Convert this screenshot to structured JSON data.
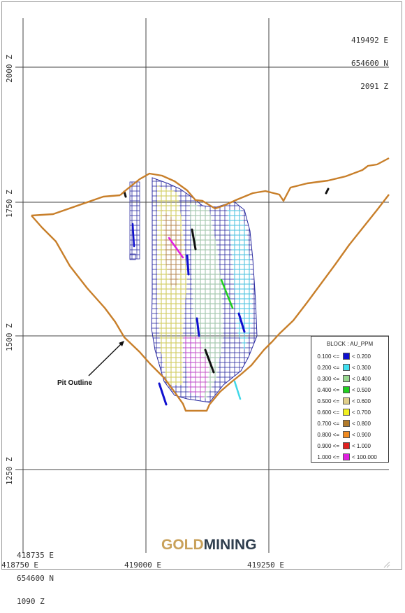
{
  "section": {
    "top_right_coords": [
      "419492 E",
      "654600 N",
      "2091 Z"
    ],
    "bottom_left_coords": [
      "418735 E",
      "654600 N",
      "1090 Z"
    ],
    "elevation_labels": [
      "2000 Z",
      "1750 Z",
      "1500 Z",
      "1250 Z"
    ],
    "easting_labels": [
      "418750 E",
      "419000 E",
      "419250 E"
    ]
  },
  "annotation": {
    "pit_label": "Pit Outline"
  },
  "legend": {
    "title": "BLOCK : AU_PPM",
    "items": [
      {
        "lower": "0.100 <=",
        "upper": "< 0.200",
        "color": "#1010d0"
      },
      {
        "lower": "0.200 <=",
        "upper": "< 0.300",
        "color": "#40e0f0"
      },
      {
        "lower": "0.300 <=",
        "upper": "< 0.400",
        "color": "#98d890"
      },
      {
        "lower": "0.400 <=",
        "upper": "< 0.500",
        "color": "#20d020"
      },
      {
        "lower": "0.500 <=",
        "upper": "< 0.600",
        "color": "#e0cf8a"
      },
      {
        "lower": "0.600 <=",
        "upper": "< 0.700",
        "color": "#f0f020"
      },
      {
        "lower": "0.700 <=",
        "upper": "< 0.800",
        "color": "#b27a2a"
      },
      {
        "lower": "0.800 <=",
        "upper": "< 0.900",
        "color": "#f08a20"
      },
      {
        "lower": "0.900 <=",
        "upper": "< 1.000",
        "color": "#e02020"
      },
      {
        "lower": "1.000 <=",
        "upper": "< 100.000",
        "color": "#e020e0"
      }
    ]
  },
  "logo": {
    "part1": "GOLD",
    "part2": "MINING"
  },
  "colors": {
    "pit_outline": "#c87f2a",
    "grid": "#333333"
  }
}
